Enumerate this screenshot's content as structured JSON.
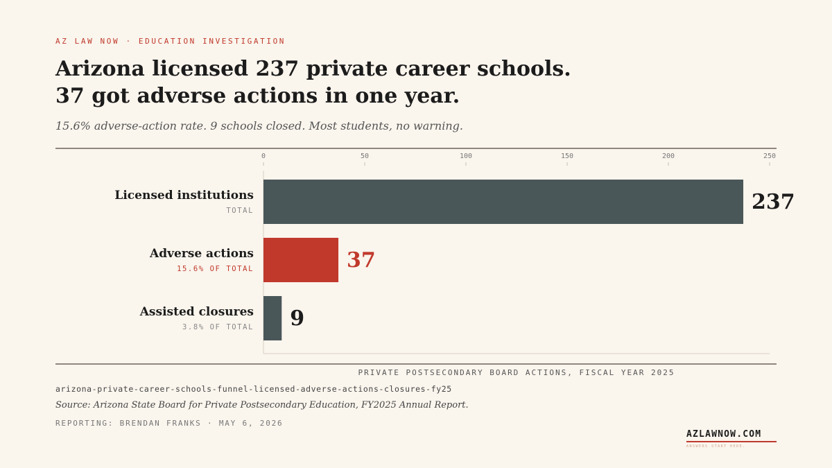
{
  "header": {
    "kicker": "AZ LAW NOW · EDUCATION INVESTIGATION",
    "title_line1": "Arizona licensed 237 private career schools.",
    "title_line2": "37 got adverse actions in one year.",
    "subtitle": "15.6% adverse-action rate. 9 schools closed. Most students, no warning."
  },
  "chart_data": {
    "type": "bar",
    "orientation": "horizontal",
    "categories": [
      "Licensed institutions",
      "Adverse actions",
      "Assisted closures"
    ],
    "sublabels": [
      "TOTAL",
      "15.6% OF TOTAL",
      "3.8% OF TOTAL"
    ],
    "values": [
      237,
      37,
      9
    ],
    "value_labels": [
      "237",
      "37",
      "9"
    ],
    "bar_colors": [
      "#4a5759",
      "#c0392b",
      "#4a5759"
    ],
    "value_label_colors": [
      "#1c1c1c",
      "#c0392b",
      "#1c1c1c"
    ],
    "sublabel_colors": [
      "#888888",
      "#c0392b",
      "#888888"
    ],
    "xlim": [
      0,
      250
    ],
    "xticks": [
      0,
      50,
      100,
      150,
      200,
      250
    ],
    "xlabel": "PRIVATE POSTSECONDARY BOARD ACTIONS, FISCAL YEAR 2025",
    "grid": false
  },
  "footer": {
    "slug": "arizona-private-career-schools-funnel-licensed-adverse-actions-closures-fy25",
    "source": "Source: Arizona State Board for Private Postsecondary Education, FY2025 Annual Report.",
    "credit": "REPORTING: BRENDAN FRANKS · MAY 6, 2026",
    "brand": "AZLAWNOW.COM",
    "brand_tagline": "ANSWERS START HERE."
  },
  "colors": {
    "background": "#faf5ed",
    "accent": "#c0392b",
    "bar_neutral": "#4a5759",
    "text": "#1c1c1c"
  }
}
